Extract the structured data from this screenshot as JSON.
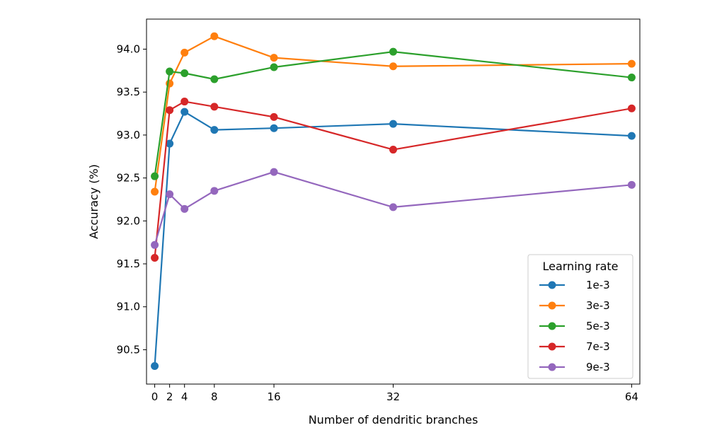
{
  "chart_data": {
    "type": "line",
    "title": "",
    "xlabel": "Number of dendritic branches",
    "ylabel": "Accuracy (%)",
    "x": [
      0,
      2,
      4,
      8,
      16,
      32,
      64
    ],
    "x_ticks": [
      0,
      2,
      4,
      8,
      16,
      32,
      64
    ],
    "x_tick_labels": [
      "0",
      "2",
      "4",
      "8",
      "16",
      "32",
      "64"
    ],
    "xlim": [
      -1.1,
      65.1
    ],
    "y_ticks": [
      90.5,
      91.0,
      91.5,
      92.0,
      92.5,
      93.0,
      93.5,
      94.0
    ],
    "y_tick_labels": [
      "90.5",
      "91.0",
      "91.5",
      "92.0",
      "92.5",
      "93.0",
      "93.5",
      "94.0"
    ],
    "ylim": [
      90.1,
      94.35
    ],
    "grid": false,
    "legend": {
      "title": "Learning rate",
      "placement": "lower-right"
    },
    "series": [
      {
        "name": "1e-3",
        "color": "#1f77b4",
        "values": [
          90.31,
          92.9,
          93.27,
          93.06,
          93.08,
          93.13,
          92.99
        ]
      },
      {
        "name": "3e-3",
        "color": "#ff7f0e",
        "values": [
          92.34,
          93.6,
          93.96,
          94.15,
          93.9,
          93.8,
          93.83
        ]
      },
      {
        "name": "5e-3",
        "color": "#2ca02c",
        "values": [
          92.52,
          93.74,
          93.72,
          93.65,
          93.79,
          93.97,
          93.67
        ]
      },
      {
        "name": "7e-3",
        "color": "#d62728",
        "values": [
          91.57,
          93.29,
          93.39,
          93.33,
          93.21,
          92.83,
          93.31
        ]
      },
      {
        "name": "9e-3",
        "color": "#9467bd",
        "values": [
          91.72,
          92.31,
          92.14,
          92.35,
          92.57,
          92.16,
          92.42
        ]
      }
    ]
  }
}
